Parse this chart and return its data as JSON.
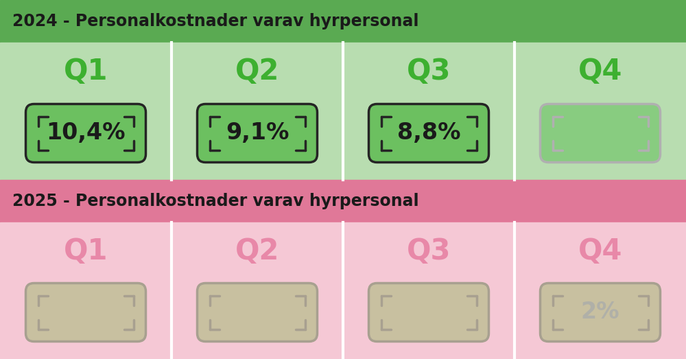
{
  "title_2024": "2024 - Personalkostnader varav hyrpersonal",
  "title_2025": "2025 - Personalkostnader varav hyrpersonal",
  "quarters_2024": [
    "Q1",
    "Q2",
    "Q3",
    "Q4"
  ],
  "values_2024": [
    "10,4%",
    "9,1%",
    "8,8%",
    ""
  ],
  "quarters_2025": [
    "Q1",
    "Q2",
    "Q3",
    "Q4"
  ],
  "values_2025": [
    "",
    "",
    "",
    "2%"
  ],
  "header_bg_2024": "#5aaa52",
  "header_bg_2025": "#e07898",
  "section_bg_2024": "#b8ddb0",
  "section_bg_2025": "#f5c8d5",
  "quarter_color_2024": "#3db030",
  "quarter_color_2025": "#e888a8",
  "bill_fill_active": "#6cc060",
  "bill_fill_inactive_green": "#88cc80",
  "bill_fill_inactive_pink": "#c8c0a0",
  "bill_border_active": "#252525",
  "bill_border_inactive_green": "#b0b0b0",
  "bill_border_inactive_pink": "#a8a090",
  "bill_text_active": "#1a1a1a",
  "bill_text_inactive": "#b0b0a8",
  "header_text_color": "#1a1a1a",
  "title_fontsize": 17,
  "quarter_fontsize": 30,
  "value_fontsize": 24,
  "col_sep_color": "#ffffff",
  "background_color": "#ffffff"
}
